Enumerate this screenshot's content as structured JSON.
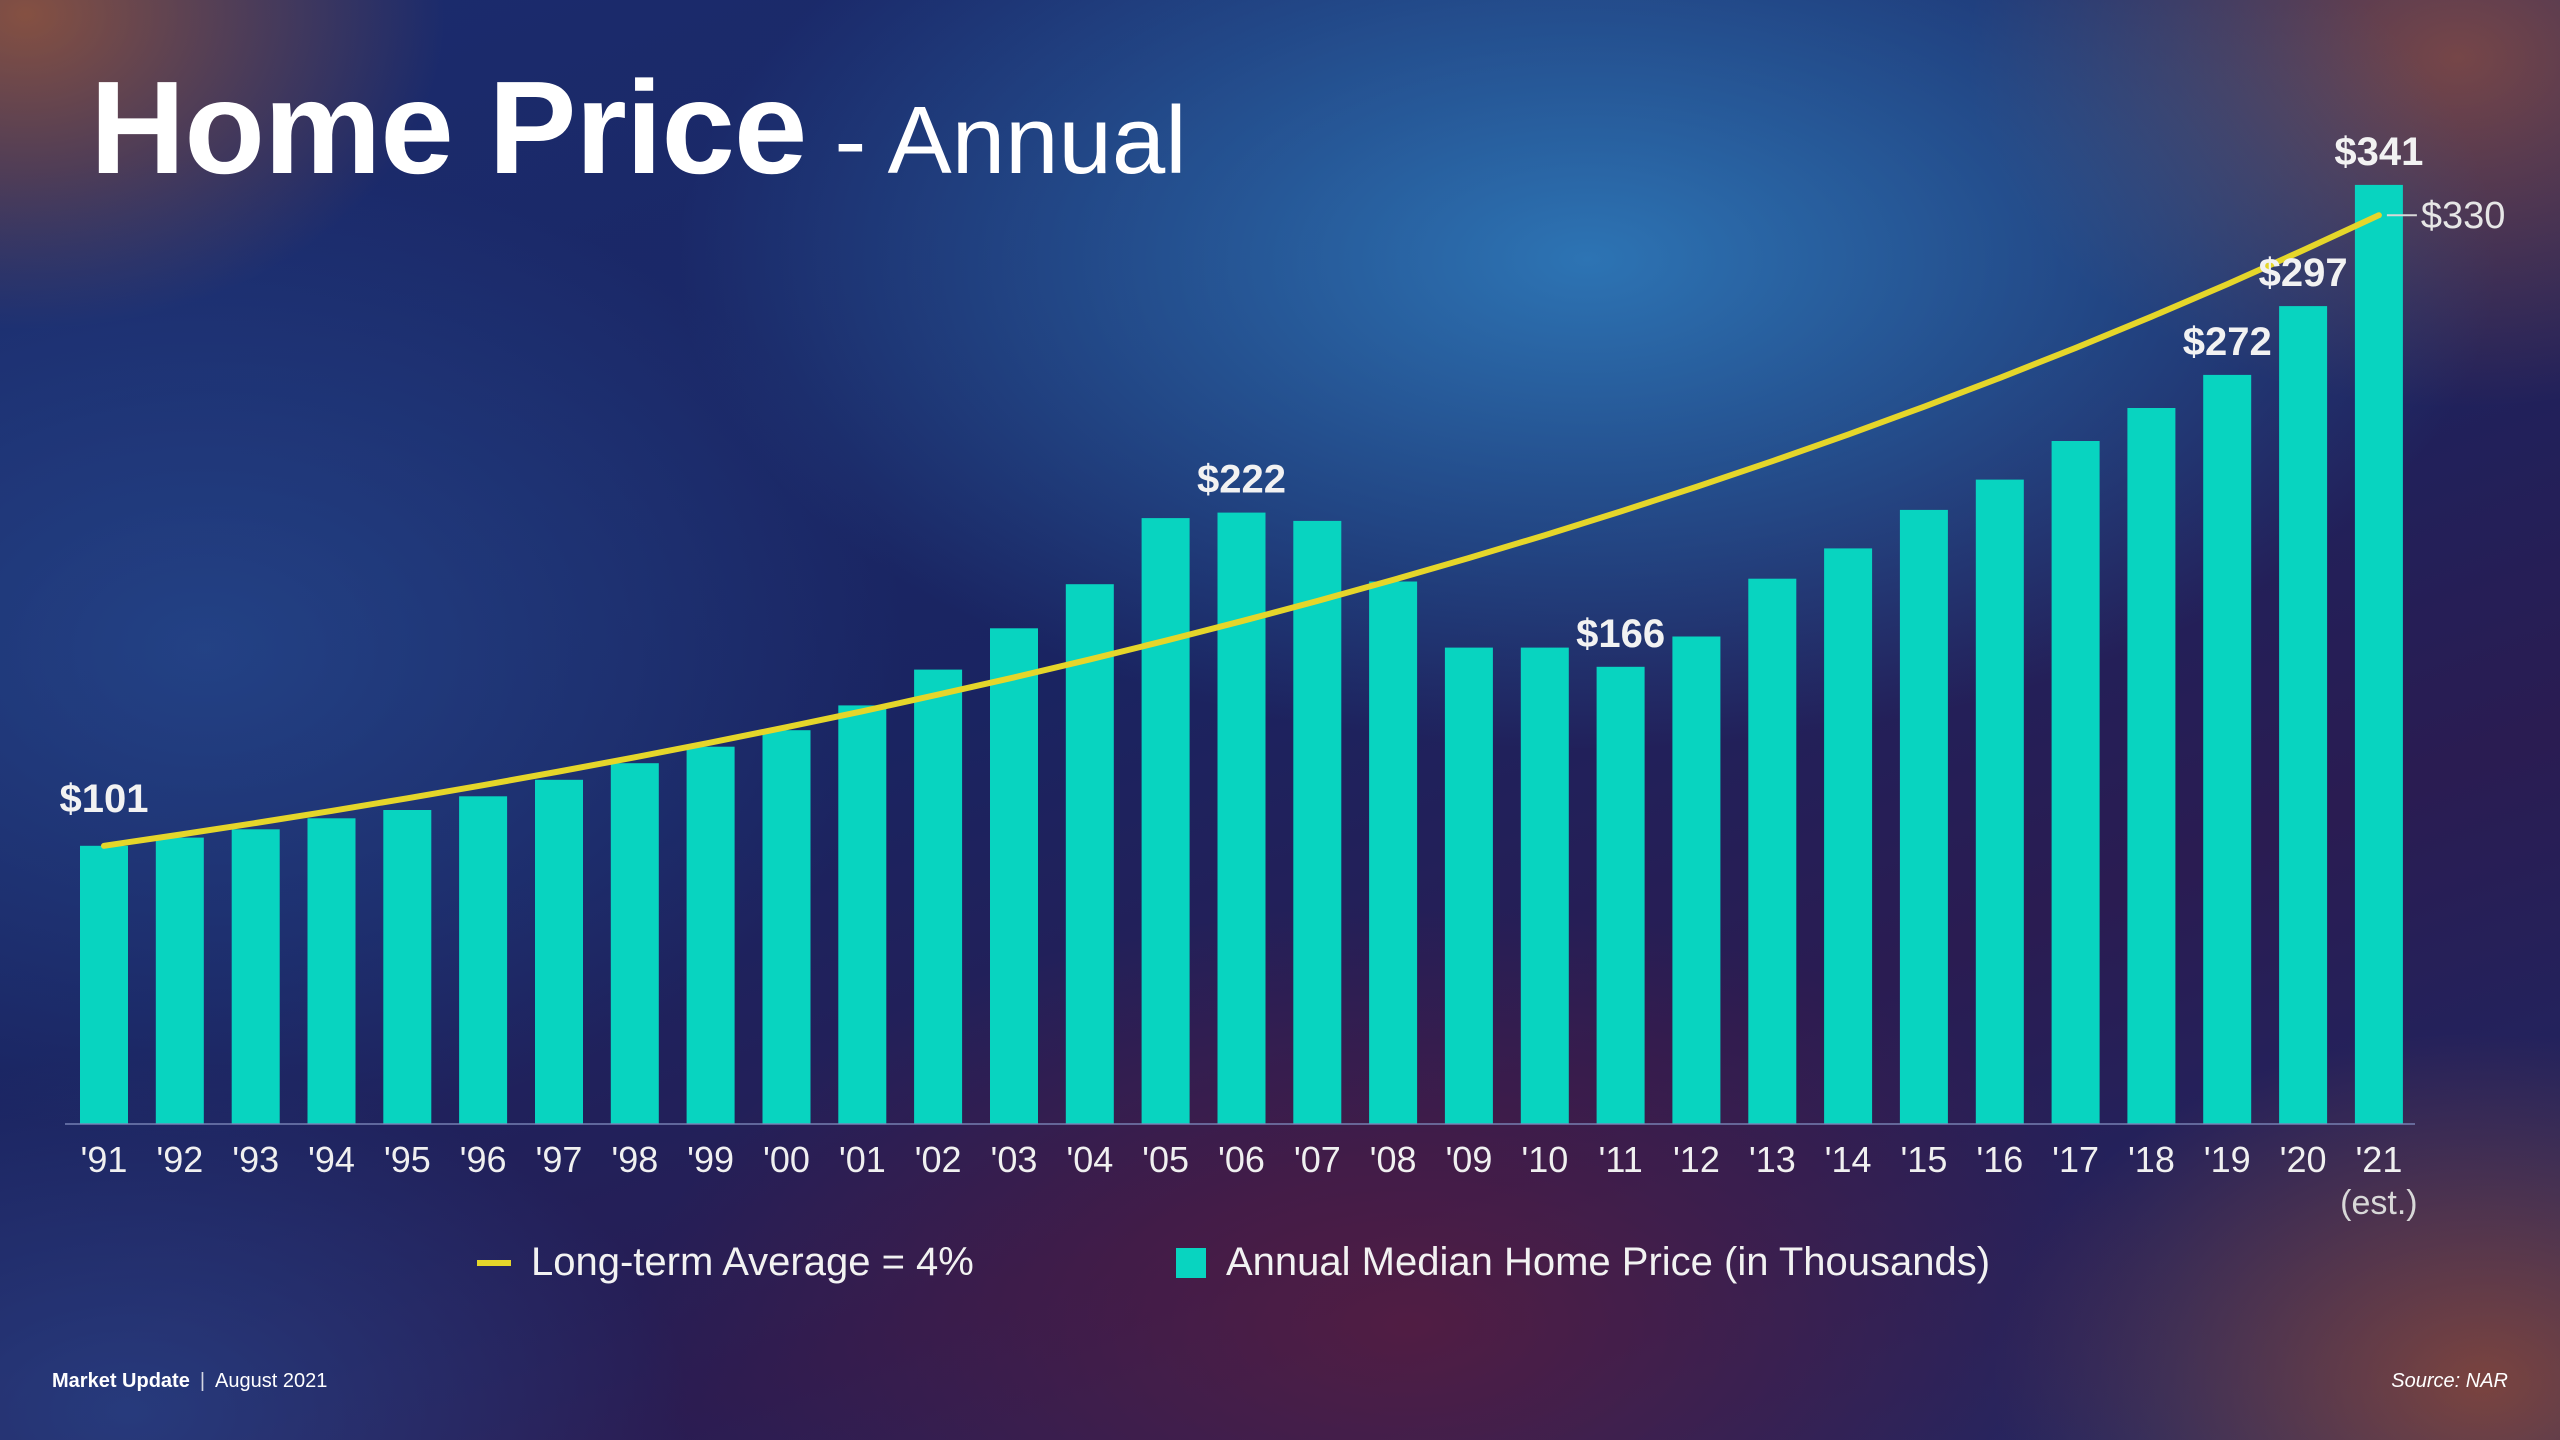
{
  "title": {
    "main": "Home Price",
    "sub": "- Annual"
  },
  "colors": {
    "bar": "#08d4c0",
    "trend_line": "#e5d62a",
    "text": "#ffffff"
  },
  "chart_data": {
    "type": "bar",
    "categories": [
      "'91",
      "'92",
      "'93",
      "'94",
      "'95",
      "'96",
      "'97",
      "'98",
      "'99",
      "'00",
      "'01",
      "'02",
      "'03",
      "'04",
      "'05",
      "'06",
      "'07",
      "'08",
      "'09",
      "'10",
      "'11",
      "'12",
      "'13",
      "'14",
      "'15",
      "'16",
      "'17",
      "'18",
      "'19",
      "'20",
      "'21"
    ],
    "category_note": {
      "index": 30,
      "text": "(est.)"
    },
    "series": [
      {
        "name": "Annual Median Home Price (in Thousands)",
        "kind": "bar",
        "values": [
          101,
          104,
          107,
          111,
          114,
          119,
          125,
          131,
          137,
          143,
          152,
          165,
          180,
          196,
          220,
          222,
          219,
          197,
          173,
          173,
          166,
          177,
          198,
          209,
          223,
          234,
          248,
          260,
          272,
          297,
          341
        ]
      },
      {
        "name": "Long-term Average = 4%",
        "kind": "line",
        "start_value": 101,
        "annual_growth": 0.04,
        "end_value": 330
      }
    ],
    "data_labels": [
      {
        "index": 0,
        "text": "$101"
      },
      {
        "index": 15,
        "text": "$222"
      },
      {
        "index": 20,
        "text": "$166"
      },
      {
        "index": 28,
        "text": "$272"
      },
      {
        "index": 29,
        "text": "$297"
      },
      {
        "index": 30,
        "text": "$341"
      }
    ],
    "line_end_label": "$330",
    "ylim": [
      0,
      350
    ],
    "grid": false,
    "legend_position": "bottom"
  },
  "legend": {
    "line_label": "Long-term Average = 4%",
    "bar_label": "Annual Median Home Price (in Thousands)"
  },
  "footer": {
    "brand": "Market Update",
    "separator": "|",
    "date": "August 2021",
    "source": "Source: NAR"
  }
}
